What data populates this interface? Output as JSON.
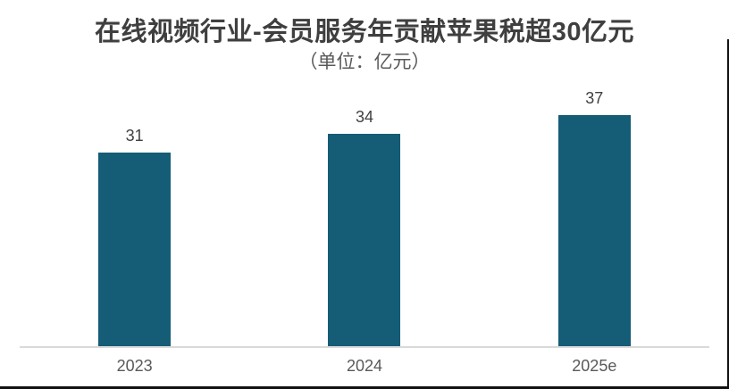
{
  "chart_data": {
    "type": "bar",
    "title": "在线视频行业-会员服务年贡献苹果税超30亿元",
    "subtitle": "（单位：亿元）",
    "categories": [
      "2023",
      "2024",
      "2025e"
    ],
    "values": [
      31,
      34,
      37
    ],
    "value_labels": [
      "31",
      "34",
      "37"
    ],
    "xlabel": "",
    "ylabel": "",
    "ylim": [
      0,
      42
    ],
    "grid": false,
    "legend_position": "none",
    "value_labels_shown": true
  },
  "colors": {
    "bar_fill": "#155c76",
    "title_text": "#3f3f3f",
    "subtitle_text": "#595959",
    "value_label_text": "#404040",
    "axis_label_text": "#595959",
    "axis_line": "#d9d9d9",
    "frame_edge": "#101010",
    "background": "#ffffff"
  }
}
